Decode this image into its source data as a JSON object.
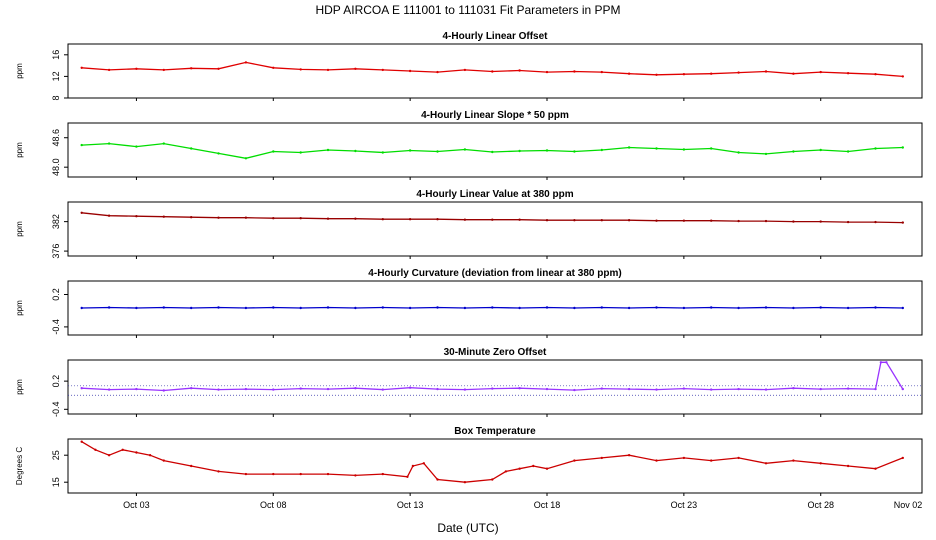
{
  "page": {
    "title": "HDP   AIRCOA E   111001 to 111031   Fit Parameters in PPM",
    "xlabel": "Date (UTC)"
  },
  "chart_data": [
    {
      "type": "line",
      "title": "4-Hourly Linear Offset",
      "ylabel": "ppm",
      "ylim": [
        8,
        18
      ],
      "yticks": [
        "8",
        "12",
        "16"
      ],
      "yticks_val": [
        8,
        12,
        16
      ],
      "xlim": [
        0.5,
        31.7
      ],
      "color": "#e00000",
      "series": [
        {
          "x": [
            1,
            2,
            3,
            4,
            5,
            6,
            7,
            8,
            9,
            10,
            11,
            12,
            13,
            14,
            15,
            16,
            17,
            18,
            19,
            20,
            21,
            22,
            23,
            24,
            25,
            26,
            27,
            28,
            29,
            30,
            31
          ],
          "values": [
            13.6,
            13.2,
            13.4,
            13.2,
            13.5,
            13.4,
            14.6,
            13.6,
            13.3,
            13.2,
            13.4,
            13.2,
            13.0,
            12.8,
            13.2,
            12.9,
            13.1,
            12.8,
            12.9,
            12.8,
            12.5,
            12.3,
            12.4,
            12.5,
            12.7,
            12.9,
            12.5,
            12.8,
            12.6,
            12.4,
            12.0
          ]
        }
      ]
    },
    {
      "type": "line",
      "title": "4-Hourly Linear Slope * 50 ppm",
      "ylabel": "ppm",
      "ylim": [
        47.8,
        48.9
      ],
      "yticks": [
        "48.0",
        "48.6"
      ],
      "yticks_val": [
        48.0,
        48.6
      ],
      "xlim": [
        0.5,
        31.7
      ],
      "color": "#00dd00",
      "series": [
        {
          "x": [
            1,
            2,
            3,
            4,
            5,
            6,
            7,
            8,
            9,
            10,
            11,
            12,
            13,
            14,
            15,
            16,
            17,
            18,
            19,
            20,
            21,
            22,
            23,
            24,
            25,
            26,
            27,
            28,
            29,
            30,
            31
          ],
          "values": [
            48.45,
            48.48,
            48.42,
            48.48,
            48.38,
            48.28,
            48.18,
            48.32,
            48.3,
            48.35,
            48.33,
            48.3,
            48.34,
            48.32,
            48.36,
            48.31,
            48.33,
            48.34,
            48.32,
            48.35,
            48.4,
            48.38,
            48.36,
            48.38,
            48.3,
            48.27,
            48.32,
            48.35,
            48.32,
            48.38,
            48.4
          ]
        }
      ]
    },
    {
      "type": "line",
      "title": "4-Hourly Linear Value at 380 ppm",
      "ylabel": "ppm",
      "ylim": [
        375,
        386
      ],
      "yticks": [
        "376",
        "382"
      ],
      "yticks_val": [
        376,
        382
      ],
      "xlim": [
        0.5,
        31.7
      ],
      "color": "#990000",
      "series": [
        {
          "x": [
            1,
            2,
            3,
            4,
            5,
            6,
            7,
            8,
            9,
            10,
            11,
            12,
            13,
            14,
            15,
            16,
            17,
            18,
            19,
            20,
            21,
            22,
            23,
            24,
            25,
            26,
            27,
            28,
            29,
            30,
            31
          ],
          "values": [
            383.8,
            383.2,
            383.1,
            383.0,
            382.9,
            382.8,
            382.8,
            382.7,
            382.7,
            382.6,
            382.6,
            382.5,
            382.5,
            382.5,
            382.4,
            382.4,
            382.4,
            382.3,
            382.3,
            382.3,
            382.3,
            382.2,
            382.2,
            382.2,
            382.1,
            382.1,
            382.0,
            382.0,
            381.9,
            381.9,
            381.8
          ]
        }
      ]
    },
    {
      "type": "line",
      "title": "4-Hourly Curvature (deviation from linear at 380 ppm)",
      "ylabel": "ppm",
      "ylim": [
        -0.55,
        0.45
      ],
      "yticks": [
        "-0.4",
        "0.2"
      ],
      "yticks_val": [
        -0.4,
        0.2
      ],
      "xlim": [
        0.5,
        31.7
      ],
      "color": "#0000cc",
      "series": [
        {
          "x": [
            1,
            2,
            3,
            4,
            5,
            6,
            7,
            8,
            9,
            10,
            11,
            12,
            13,
            14,
            15,
            16,
            17,
            18,
            19,
            20,
            21,
            22,
            23,
            24,
            25,
            26,
            27,
            28,
            29,
            30,
            31
          ],
          "values": [
            -0.05,
            -0.04,
            -0.05,
            -0.04,
            -0.05,
            -0.04,
            -0.05,
            -0.04,
            -0.05,
            -0.04,
            -0.05,
            -0.04,
            -0.05,
            -0.04,
            -0.05,
            -0.04,
            -0.05,
            -0.04,
            -0.05,
            -0.04,
            -0.05,
            -0.04,
            -0.05,
            -0.04,
            -0.05,
            -0.04,
            -0.05,
            -0.04,
            -0.05,
            -0.04,
            -0.05
          ]
        }
      ]
    },
    {
      "type": "line",
      "title": "30-Minute Zero Offset",
      "ylabel": "ppm",
      "ylim": [
        -0.5,
        0.65
      ],
      "yticks": [
        "-0.4",
        "0.2"
      ],
      "yticks_val": [
        -0.4,
        0.2
      ],
      "xlim": [
        0.5,
        31.7
      ],
      "color": "#9933ff",
      "reference_lines": [
        0.1,
        -0.1
      ],
      "series": [
        {
          "x": [
            1,
            2,
            3,
            4,
            5,
            6,
            7,
            8,
            9,
            10,
            11,
            12,
            13,
            14,
            15,
            16,
            17,
            18,
            19,
            20,
            21,
            22,
            23,
            24,
            25,
            26,
            27,
            28,
            29,
            30,
            30.2,
            30.4,
            31
          ],
          "values": [
            0.05,
            0.02,
            0.03,
            0.0,
            0.05,
            0.02,
            0.03,
            0.02,
            0.04,
            0.03,
            0.05,
            0.02,
            0.06,
            0.03,
            0.02,
            0.04,
            0.05,
            0.03,
            0.01,
            0.04,
            0.03,
            0.02,
            0.04,
            0.02,
            0.03,
            0.02,
            0.05,
            0.03,
            0.04,
            0.03,
            0.6,
            0.6,
            0.03
          ]
        }
      ]
    },
    {
      "type": "line",
      "title": "Box Temperature",
      "ylabel": "Degrees C",
      "ylim": [
        11,
        31
      ],
      "yticks": [
        "15",
        "25"
      ],
      "yticks_val": [
        15,
        25
      ],
      "xlim": [
        0.5,
        31.7
      ],
      "color": "#cc0000",
      "series": [
        {
          "x": [
            1,
            1.5,
            2,
            2.5,
            3,
            3.5,
            4,
            5,
            6,
            7,
            8,
            9,
            10,
            11,
            12,
            12.9,
            13.1,
            13.5,
            14,
            15,
            16,
            16.5,
            17,
            17.5,
            18,
            19,
            20,
            21,
            22,
            23,
            24,
            25,
            26,
            27,
            28,
            29,
            30,
            31
          ],
          "values": [
            30,
            27,
            25,
            27,
            26,
            25,
            23,
            21,
            19,
            18,
            18,
            18,
            18,
            17.5,
            18,
            17,
            21,
            22,
            16,
            15,
            16,
            19,
            20,
            21,
            20,
            23,
            24,
            25,
            23,
            24,
            23,
            24,
            22,
            23,
            22,
            21,
            20,
            24
          ]
        }
      ]
    }
  ],
  "xaxis": {
    "ticks": [
      "Oct 03",
      "Oct 08",
      "Oct 13",
      "Oct 18",
      "Oct 23",
      "Oct 28",
      "Nov 02"
    ],
    "ticks_val": [
      3,
      8,
      13,
      18,
      23,
      28,
      33
    ]
  }
}
